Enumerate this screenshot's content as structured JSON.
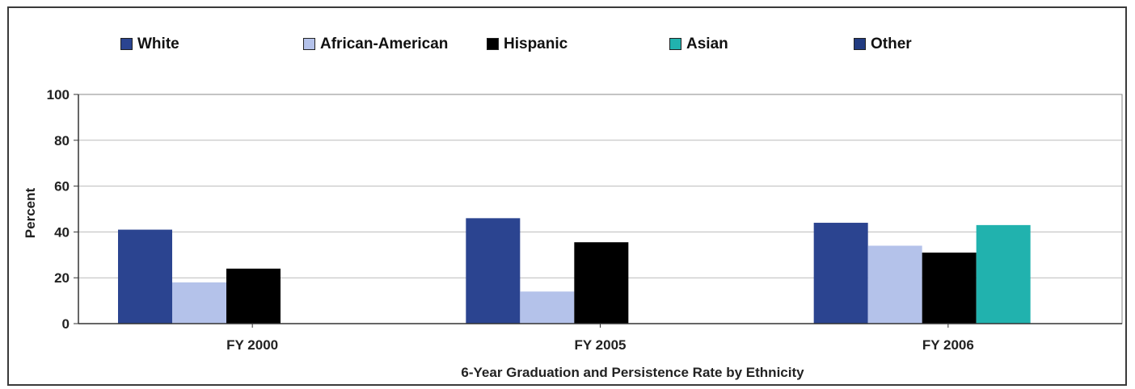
{
  "chart_data": {
    "type": "bar",
    "categories": [
      "FY 2000",
      "FY 2005",
      "FY 2006"
    ],
    "series": [
      {
        "name": "White",
        "color": "#2b4490",
        "values": [
          41,
          46,
          44
        ]
      },
      {
        "name": "African-American",
        "color": "#b4c2ea",
        "values": [
          18,
          14,
          34
        ]
      },
      {
        "name": "Hispanic",
        "color": "#000000",
        "values": [
          24,
          35.5,
          31
        ]
      },
      {
        "name": "Asian",
        "color": "#21b2ae",
        "values": [
          null,
          null,
          43
        ]
      },
      {
        "name": "Other",
        "color": "#223b80",
        "values": [
          null,
          null,
          null
        ]
      }
    ],
    "xlabel": "6-Year Graduation and Persistence Rate by Ethnicity",
    "ylabel": "Percent",
    "ylim": [
      0,
      100
    ],
    "yticks": [
      0,
      20,
      40,
      60,
      80,
      100
    ],
    "grid": true,
    "legend_position": "top"
  }
}
